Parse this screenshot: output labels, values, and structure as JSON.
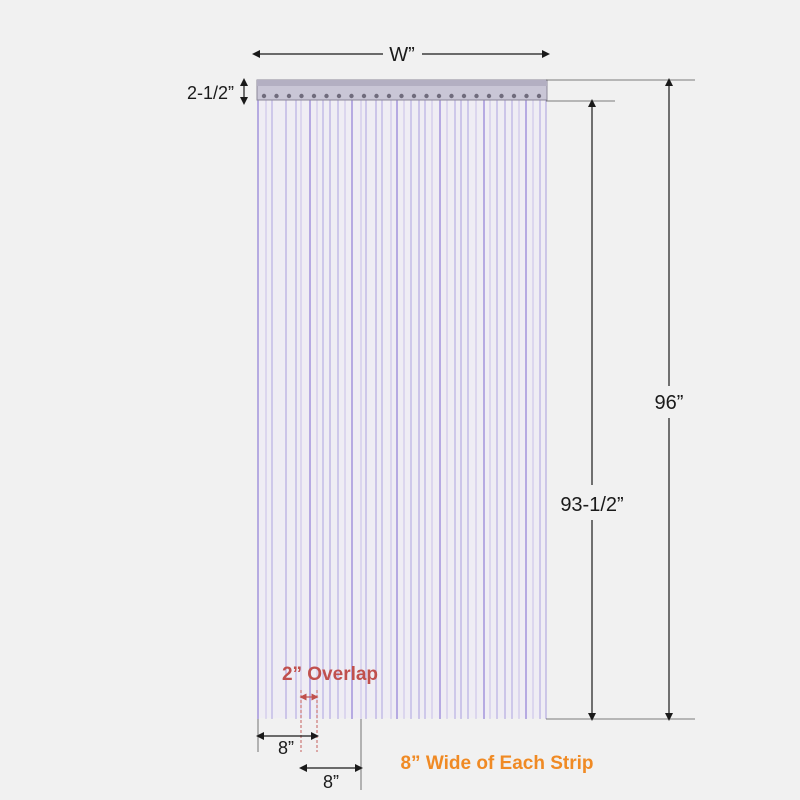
{
  "labels": {
    "width": "W”",
    "header_height": "2-1/2”",
    "total_height": "96”",
    "strip_height": "93-1/2”",
    "overlap": "2” Overlap",
    "strip_width_a": "8”",
    "strip_width_b": "8”",
    "strip_note": "8” Wide of Each Strip"
  },
  "colors": {
    "background": "#f1f1f1",
    "strip_line": "#8f7fd6",
    "overlap_accent": "#c0504d",
    "note_accent": "#f08a24",
    "text": "#1a1a1a"
  }
}
